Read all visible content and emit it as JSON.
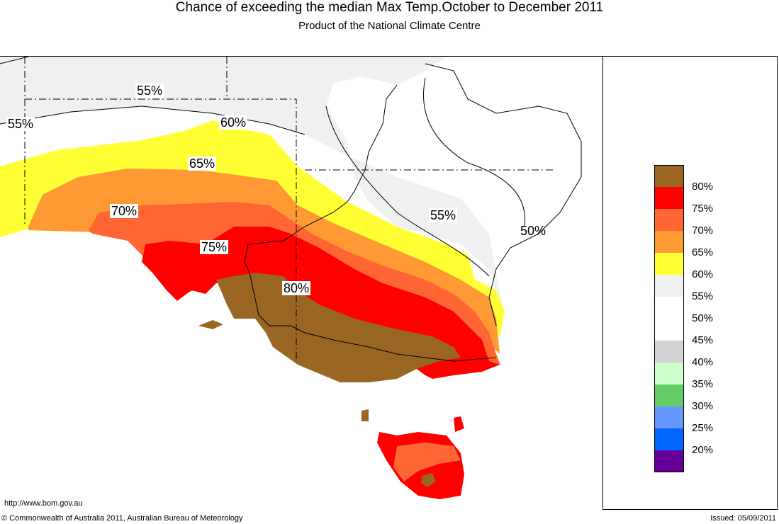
{
  "header": {
    "title": "Chance of exceeding the median Max Temp.October to December 2011",
    "subtitle": "Product of the National Climate Centre"
  },
  "legend": [
    {
      "label": "80%",
      "color": "#996623"
    },
    {
      "label": "75%",
      "color": "#ff0000"
    },
    {
      "label": "70%",
      "color": "#ff6633"
    },
    {
      "label": "65%",
      "color": "#ff9933"
    },
    {
      "label": "60%",
      "color": "#ffff33"
    },
    {
      "label": "55%",
      "color": "#f0f0f0"
    },
    {
      "label": "50%",
      "color": "#ffffff"
    },
    {
      "label": "45%",
      "color": "#ffffff"
    },
    {
      "label": "40%",
      "color": "#d3d3d3"
    },
    {
      "label": "35%",
      "color": "#ccffcc"
    },
    {
      "label": "30%",
      "color": "#66cc66"
    },
    {
      "label": "25%",
      "color": "#6699ff"
    },
    {
      "label": "20%",
      "color": "#0066ff"
    },
    {
      "label": "",
      "color": "#660099"
    }
  ],
  "map_labels": {
    "nw_55": "55%",
    "w_55": "55%",
    "c_60": "60%",
    "c_65": "65%",
    "c_70": "70%",
    "c_75": "75%",
    "c_80": "80%",
    "e_55": "55%",
    "e_50": "50%"
  },
  "footer": {
    "url": "http://www.bom.gov.au",
    "copyright": "© Commonwealth of Australia 2011, Australian Bureau of Meteorology",
    "issued": "Issued: 05/09/2011"
  }
}
